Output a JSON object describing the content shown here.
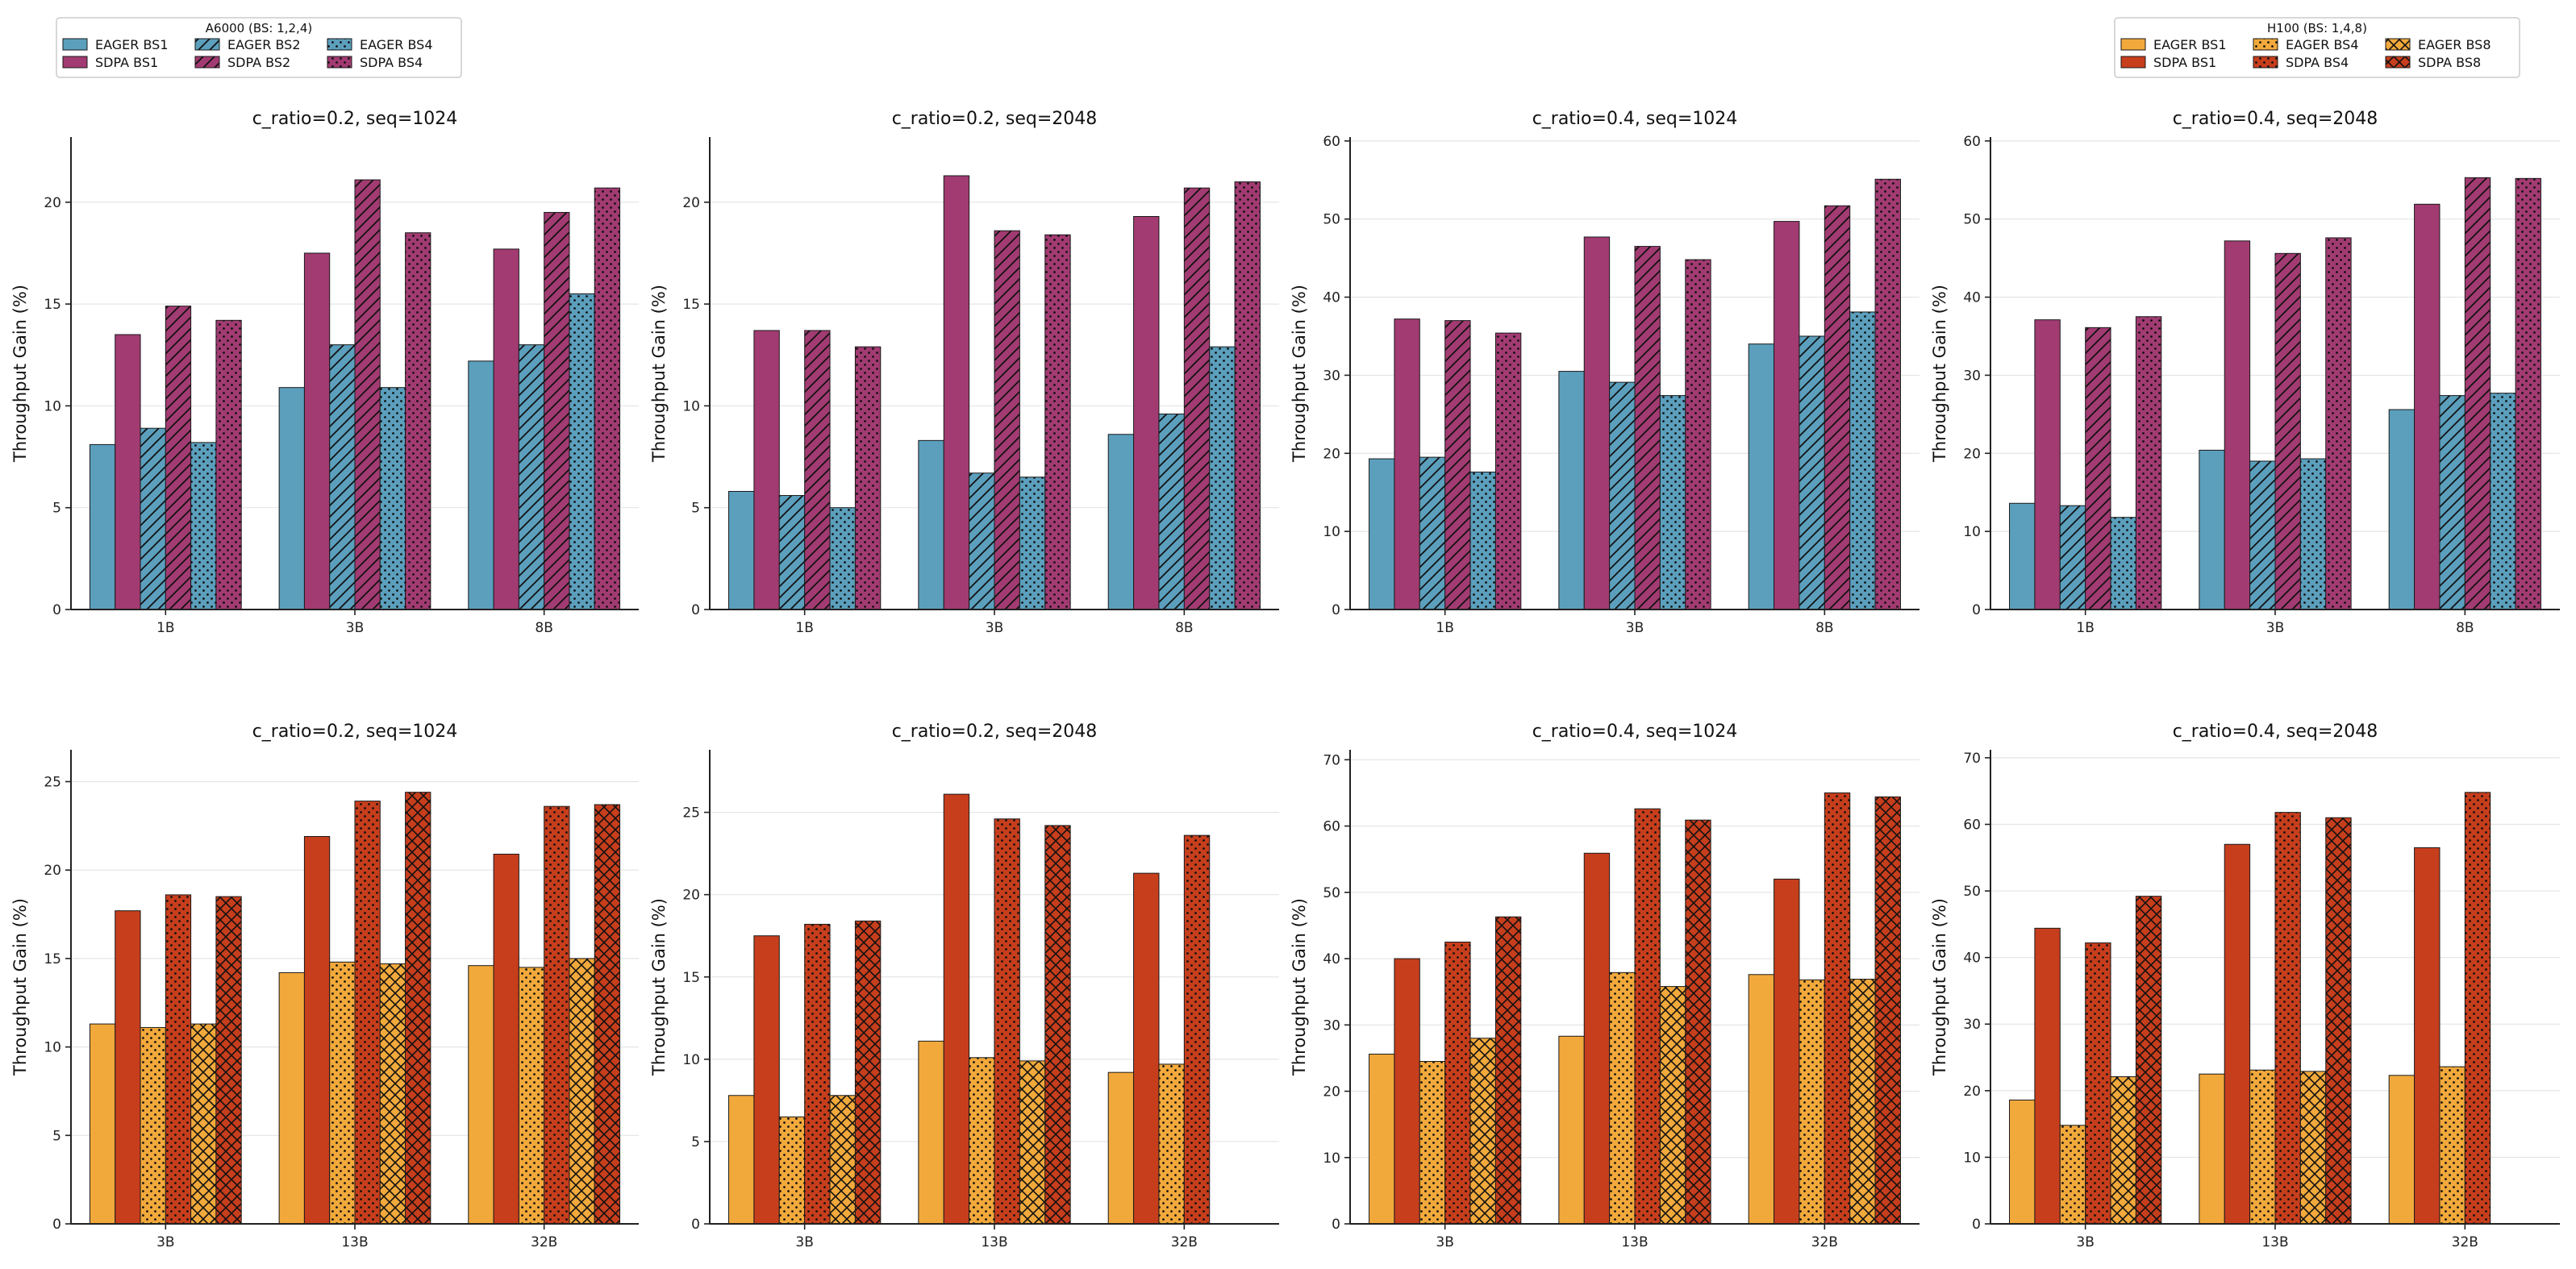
{
  "colors": {
    "a6000_eager": "#5b9fbd",
    "a6000_sdpa": "#a23b72",
    "h100_eager": "#f2a93b",
    "h100_sdpa": "#c73e1d",
    "grid": "#e4e4e4",
    "axis": "#222222"
  },
  "legends": {
    "a6000": {
      "title": "A6000 (BS: 1,2,4)",
      "entries": [
        {
          "label": "EAGER BS1",
          "color": "a6000_eager",
          "hatch": "none"
        },
        {
          "label": "SDPA BS1",
          "color": "a6000_sdpa",
          "hatch": "none"
        },
        {
          "label": "EAGER BS2",
          "color": "a6000_eager",
          "hatch": "diag"
        },
        {
          "label": "SDPA BS2",
          "color": "a6000_sdpa",
          "hatch": "diag"
        },
        {
          "label": "EAGER BS4",
          "color": "a6000_eager",
          "hatch": "dots"
        },
        {
          "label": "SDPA BS4",
          "color": "a6000_sdpa",
          "hatch": "dots"
        }
      ]
    },
    "h100": {
      "title": "H100 (BS: 1,4,8)",
      "entries": [
        {
          "label": "EAGER BS1",
          "color": "h100_eager",
          "hatch": "none"
        },
        {
          "label": "SDPA BS1",
          "color": "h100_sdpa",
          "hatch": "none"
        },
        {
          "label": "EAGER BS4",
          "color": "h100_eager",
          "hatch": "dots"
        },
        {
          "label": "SDPA BS4",
          "color": "h100_sdpa",
          "hatch": "dots"
        },
        {
          "label": "EAGER BS8",
          "color": "h100_eager",
          "hatch": "cross"
        },
        {
          "label": "SDPA BS8",
          "color": "h100_sdpa",
          "hatch": "cross"
        }
      ]
    }
  },
  "chart_data": [
    {
      "type": "bar",
      "gpu": "a6000",
      "title": "c_ratio=0.2, seq=1024",
      "ylabel": "Throughput Gain (%)",
      "categories": [
        "1B",
        "3B",
        "8B"
      ],
      "yticks": [
        0,
        5,
        10,
        15,
        20
      ],
      "ylim": [
        0,
        23.2
      ],
      "grid": true,
      "series": [
        {
          "name": "EAGER BS1",
          "color": "a6000_eager",
          "hatch": "none",
          "values": [
            8.1,
            10.9,
            12.2
          ]
        },
        {
          "name": "SDPA BS1",
          "color": "a6000_sdpa",
          "hatch": "none",
          "values": [
            13.5,
            17.5,
            17.7
          ]
        },
        {
          "name": "EAGER BS2",
          "color": "a6000_eager",
          "hatch": "diag",
          "values": [
            8.9,
            13.0,
            13.0
          ]
        },
        {
          "name": "SDPA BS2",
          "color": "a6000_sdpa",
          "hatch": "diag",
          "values": [
            14.9,
            21.1,
            19.5
          ]
        },
        {
          "name": "EAGER BS4",
          "color": "a6000_eager",
          "hatch": "dots",
          "values": [
            8.2,
            10.9,
            15.5
          ]
        },
        {
          "name": "SDPA BS4",
          "color": "a6000_sdpa",
          "hatch": "dots",
          "values": [
            14.2,
            18.5,
            20.7
          ]
        }
      ]
    },
    {
      "type": "bar",
      "gpu": "a6000",
      "title": "c_ratio=0.2, seq=2048",
      "ylabel": "Throughput Gain (%)",
      "categories": [
        "1B",
        "3B",
        "8B"
      ],
      "yticks": [
        0,
        5,
        10,
        15,
        20
      ],
      "ylim": [
        0,
        23.2
      ],
      "grid": true,
      "series": [
        {
          "name": "EAGER BS1",
          "color": "a6000_eager",
          "hatch": "none",
          "values": [
            5.8,
            8.3,
            8.6
          ]
        },
        {
          "name": "SDPA BS1",
          "color": "a6000_sdpa",
          "hatch": "none",
          "values": [
            13.7,
            21.3,
            19.3
          ]
        },
        {
          "name": "EAGER BS2",
          "color": "a6000_eager",
          "hatch": "diag",
          "values": [
            5.6,
            6.7,
            9.6
          ]
        },
        {
          "name": "SDPA BS2",
          "color": "a6000_sdpa",
          "hatch": "diag",
          "values": [
            13.7,
            18.6,
            20.7
          ]
        },
        {
          "name": "EAGER BS4",
          "color": "a6000_eager",
          "hatch": "dots",
          "values": [
            5.0,
            6.5,
            12.9
          ]
        },
        {
          "name": "SDPA BS4",
          "color": "a6000_sdpa",
          "hatch": "dots",
          "values": [
            12.9,
            18.4,
            21.0
          ]
        }
      ]
    },
    {
      "type": "bar",
      "gpu": "a6000",
      "title": "c_ratio=0.4, seq=1024",
      "ylabel": "Throughput Gain (%)",
      "categories": [
        "1B",
        "3B",
        "8B"
      ],
      "yticks": [
        0,
        10,
        20,
        30,
        40,
        50,
        60
      ],
      "ylim": [
        0,
        60.5
      ],
      "grid": true,
      "series": [
        {
          "name": "EAGER BS1",
          "color": "a6000_eager",
          "hatch": "none",
          "values": [
            19.3,
            30.5,
            34.0
          ]
        },
        {
          "name": "SDPA BS1",
          "color": "a6000_sdpa",
          "hatch": "none",
          "values": [
            37.2,
            47.7,
            49.7
          ]
        },
        {
          "name": "EAGER BS2",
          "color": "a6000_eager",
          "hatch": "diag",
          "values": [
            19.5,
            29.1,
            35.0
          ]
        },
        {
          "name": "SDPA BS2",
          "color": "a6000_sdpa",
          "hatch": "diag",
          "values": [
            37.0,
            46.5,
            51.7
          ]
        },
        {
          "name": "EAGER BS4",
          "color": "a6000_eager",
          "hatch": "dots",
          "values": [
            17.6,
            27.4,
            38.1
          ]
        },
        {
          "name": "SDPA BS4",
          "color": "a6000_sdpa",
          "hatch": "dots",
          "values": [
            35.4,
            44.8,
            55.1
          ]
        }
      ]
    },
    {
      "type": "bar",
      "gpu": "a6000",
      "title": "c_ratio=0.4, seq=2048",
      "ylabel": "Throughput Gain (%)",
      "categories": [
        "1B",
        "3B",
        "8B"
      ],
      "yticks": [
        0,
        10,
        20,
        30,
        40,
        50,
        60
      ],
      "ylim": [
        0,
        60.5
      ],
      "grid": true,
      "series": [
        {
          "name": "EAGER BS1",
          "color": "a6000_eager",
          "hatch": "none",
          "values": [
            13.6,
            20.4,
            25.6
          ]
        },
        {
          "name": "SDPA BS1",
          "color": "a6000_sdpa",
          "hatch": "none",
          "values": [
            37.1,
            47.2,
            51.9
          ]
        },
        {
          "name": "EAGER BS2",
          "color": "a6000_eager",
          "hatch": "diag",
          "values": [
            13.3,
            19.0,
            27.4
          ]
        },
        {
          "name": "SDPA BS2",
          "color": "a6000_sdpa",
          "hatch": "diag",
          "values": [
            36.1,
            45.6,
            55.3
          ]
        },
        {
          "name": "EAGER BS4",
          "color": "a6000_eager",
          "hatch": "dots",
          "values": [
            11.8,
            19.3,
            27.7
          ]
        },
        {
          "name": "SDPA BS4",
          "color": "a6000_sdpa",
          "hatch": "dots",
          "values": [
            37.5,
            47.6,
            55.2
          ]
        }
      ]
    },
    {
      "type": "bar",
      "gpu": "h100",
      "title": "c_ratio=0.2, seq=1024",
      "ylabel": "Throughput Gain (%)",
      "categories": [
        "3B",
        "13B",
        "32B"
      ],
      "yticks": [
        0,
        5,
        10,
        15,
        20,
        25
      ],
      "ylim": [
        0,
        26.8
      ],
      "grid": true,
      "series": [
        {
          "name": "EAGER BS1",
          "color": "h100_eager",
          "hatch": "none",
          "values": [
            11.3,
            14.2,
            14.6
          ]
        },
        {
          "name": "SDPA BS1",
          "color": "h100_sdpa",
          "hatch": "none",
          "values": [
            17.7,
            21.9,
            20.9
          ]
        },
        {
          "name": "EAGER BS4",
          "color": "h100_eager",
          "hatch": "dots",
          "values": [
            11.1,
            14.8,
            14.5
          ]
        },
        {
          "name": "SDPA BS4",
          "color": "h100_sdpa",
          "hatch": "dots",
          "values": [
            18.6,
            23.9,
            23.6
          ]
        },
        {
          "name": "EAGER BS8",
          "color": "h100_eager",
          "hatch": "cross",
          "values": [
            11.3,
            14.7,
            15.0
          ]
        },
        {
          "name": "SDPA BS8",
          "color": "h100_sdpa",
          "hatch": "cross",
          "values": [
            18.5,
            24.4,
            23.7
          ]
        }
      ]
    },
    {
      "type": "bar",
      "gpu": "h100",
      "title": "c_ratio=0.2, seq=2048",
      "ylabel": "Throughput Gain (%)",
      "categories": [
        "3B",
        "13B",
        "32B"
      ],
      "yticks": [
        0,
        5,
        10,
        15,
        20,
        25
      ],
      "ylim": [
        0,
        28.8
      ],
      "grid": true,
      "series": [
        {
          "name": "EAGER BS1",
          "color": "h100_eager",
          "hatch": "none",
          "values": [
            7.8,
            11.1,
            9.2
          ]
        },
        {
          "name": "SDPA BS1",
          "color": "h100_sdpa",
          "hatch": "none",
          "values": [
            17.5,
            26.1,
            21.3
          ]
        },
        {
          "name": "EAGER BS4",
          "color": "h100_eager",
          "hatch": "dots",
          "values": [
            6.5,
            10.1,
            9.7
          ]
        },
        {
          "name": "SDPA BS4",
          "color": "h100_sdpa",
          "hatch": "dots",
          "values": [
            18.2,
            24.6,
            23.6
          ]
        },
        {
          "name": "EAGER BS8",
          "color": "h100_eager",
          "hatch": "cross",
          "values": [
            7.8,
            9.9,
            null
          ]
        },
        {
          "name": "SDPA BS8",
          "color": "h100_sdpa",
          "hatch": "cross",
          "values": [
            18.4,
            24.2,
            null
          ]
        }
      ]
    },
    {
      "type": "bar",
      "gpu": "h100",
      "title": "c_ratio=0.4, seq=1024",
      "ylabel": "Throughput Gain (%)",
      "categories": [
        "3B",
        "13B",
        "32B"
      ],
      "yticks": [
        0,
        10,
        20,
        30,
        40,
        50,
        60,
        70
      ],
      "ylim": [
        0,
        71.5
      ],
      "grid": true,
      "series": [
        {
          "name": "EAGER BS1",
          "color": "h100_eager",
          "hatch": "none",
          "values": [
            25.6,
            28.3,
            37.6
          ]
        },
        {
          "name": "SDPA BS1",
          "color": "h100_sdpa",
          "hatch": "none",
          "values": [
            40.0,
            55.9,
            52.0
          ]
        },
        {
          "name": "EAGER BS4",
          "color": "h100_eager",
          "hatch": "dots",
          "values": [
            24.5,
            37.9,
            36.8
          ]
        },
        {
          "name": "SDPA BS4",
          "color": "h100_sdpa",
          "hatch": "dots",
          "values": [
            42.5,
            62.6,
            65.0
          ]
        },
        {
          "name": "EAGER BS8",
          "color": "h100_eager",
          "hatch": "cross",
          "values": [
            28.0,
            35.8,
            36.9
          ]
        },
        {
          "name": "SDPA BS8",
          "color": "h100_sdpa",
          "hatch": "cross",
          "values": [
            46.3,
            60.9,
            64.4
          ]
        }
      ]
    },
    {
      "type": "bar",
      "gpu": "h100",
      "title": "c_ratio=0.4, seq=2048",
      "ylabel": "Throughput Gain (%)",
      "categories": [
        "3B",
        "13B",
        "32B"
      ],
      "yticks": [
        0,
        10,
        20,
        30,
        40,
        50,
        60,
        70
      ],
      "ylim": [
        0,
        71.2
      ],
      "grid": true,
      "series": [
        {
          "name": "EAGER BS1",
          "color": "h100_eager",
          "hatch": "none",
          "values": [
            18.6,
            22.5,
            22.3
          ]
        },
        {
          "name": "SDPA BS1",
          "color": "h100_sdpa",
          "hatch": "none",
          "values": [
            44.4,
            57.0,
            56.5
          ]
        },
        {
          "name": "EAGER BS4",
          "color": "h100_eager",
          "hatch": "dots",
          "values": [
            14.8,
            23.1,
            23.6
          ]
        },
        {
          "name": "SDPA BS4",
          "color": "h100_sdpa",
          "hatch": "dots",
          "values": [
            42.2,
            61.8,
            64.8
          ]
        },
        {
          "name": "EAGER BS8",
          "color": "h100_eager",
          "hatch": "cross",
          "values": [
            22.1,
            22.9,
            null
          ]
        },
        {
          "name": "SDPA BS8",
          "color": "h100_sdpa",
          "hatch": "cross",
          "values": [
            49.2,
            61.0,
            null
          ]
        }
      ]
    }
  ]
}
